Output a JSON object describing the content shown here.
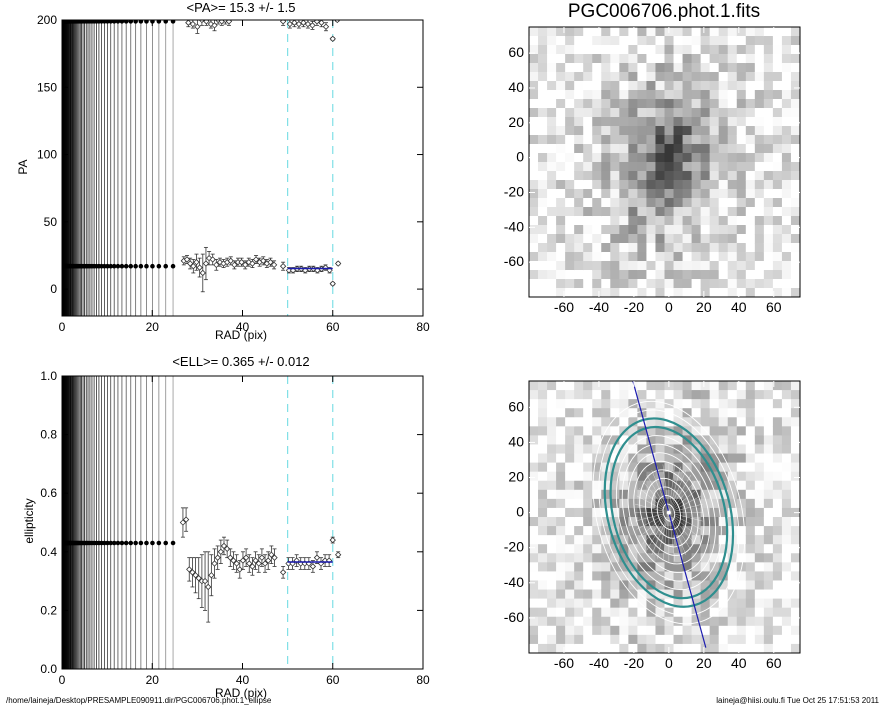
{
  "footer": {
    "path": "/home/laineja/Desktop/PRESAMPLE090911.dir/PGC006706.phot.1_ellipse",
    "user_time": "laineja@hiisi.oulu.fi  Tue Oct 25 17:51:53 2011"
  },
  "colors": {
    "dash_line": "#7fe0e6",
    "fit_line": "#1c1cb0",
    "ellipse_teal": "#2f8f8f",
    "ellipse_white": "#ffffff",
    "axis_line": "#000000"
  },
  "chart_data": [
    {
      "id": "pa",
      "type": "scatter",
      "title": "<PA>=  15.3 +/-   1.5",
      "xlabel": "RAD (pix)",
      "ylabel": "PA",
      "xlim": [
        0,
        80
      ],
      "ylim": [
        -20,
        200
      ],
      "xticks": [
        0,
        20,
        40,
        60,
        80
      ],
      "yticks": [
        0,
        50,
        100,
        150,
        200
      ],
      "dashed_x": [
        50,
        60
      ],
      "fit": {
        "x": [
          50,
          60
        ],
        "y": 15.3
      },
      "dense_region_x": [
        0,
        26
      ],
      "points_low": [
        {
          "x": 27,
          "y": 21,
          "e": 3
        },
        {
          "x": 27.7,
          "y": 22,
          "e": 3
        },
        {
          "x": 28.4,
          "y": 19,
          "e": 4
        },
        {
          "x": 29.1,
          "y": 17,
          "e": 5
        },
        {
          "x": 29.8,
          "y": 20,
          "e": 6
        },
        {
          "x": 30.5,
          "y": 16,
          "e": 7
        },
        {
          "x": 31.2,
          "y": 12,
          "e": 14
        },
        {
          "x": 31.9,
          "y": 19,
          "e": 12
        },
        {
          "x": 32.6,
          "y": 23,
          "e": 5
        },
        {
          "x": 33.4,
          "y": 22,
          "e": 4
        },
        {
          "x": 34.2,
          "y": 18,
          "e": 4
        },
        {
          "x": 35,
          "y": 20,
          "e": 3
        },
        {
          "x": 35.8,
          "y": 19,
          "e": 3
        },
        {
          "x": 36.6,
          "y": 20,
          "e": 3
        },
        {
          "x": 37.4,
          "y": 21,
          "e": 3
        },
        {
          "x": 38.2,
          "y": 18,
          "e": 3
        },
        {
          "x": 39,
          "y": 20,
          "e": 3
        },
        {
          "x": 39.8,
          "y": 20,
          "e": 3
        },
        {
          "x": 40.6,
          "y": 18,
          "e": 3
        },
        {
          "x": 41.4,
          "y": 20,
          "e": 3
        },
        {
          "x": 42.2,
          "y": 19,
          "e": 3
        },
        {
          "x": 43,
          "y": 22,
          "e": 3
        },
        {
          "x": 43.8,
          "y": 20,
          "e": 3
        },
        {
          "x": 44.6,
          "y": 21,
          "e": 3
        },
        {
          "x": 45.4,
          "y": 19,
          "e": 3
        },
        {
          "x": 46.2,
          "y": 20,
          "e": 3
        },
        {
          "x": 47,
          "y": 18,
          "e": 3
        },
        {
          "x": 49,
          "y": 17,
          "e": 3
        },
        {
          "x": 50.3,
          "y": 14,
          "e": 2
        },
        {
          "x": 51.2,
          "y": 14,
          "e": 2
        },
        {
          "x": 52.1,
          "y": 15,
          "e": 2
        },
        {
          "x": 53,
          "y": 15,
          "e": 2
        },
        {
          "x": 53.9,
          "y": 14,
          "e": 2
        },
        {
          "x": 54.8,
          "y": 15,
          "e": 2
        },
        {
          "x": 55.7,
          "y": 15,
          "e": 2
        },
        {
          "x": 56.6,
          "y": 14,
          "e": 2
        },
        {
          "x": 57.5,
          "y": 15,
          "e": 2
        },
        {
          "x": 58.4,
          "y": 16,
          "e": 2
        },
        {
          "x": 59.3,
          "y": 14,
          "e": 2
        },
        {
          "x": 60,
          "y": 4,
          "e": 1
        },
        {
          "x": 61.2,
          "y": 19,
          "e": 1
        }
      ],
      "points_high": [
        {
          "x": 28,
          "y": 198,
          "e": 3
        },
        {
          "x": 29,
          "y": 197,
          "e": 3
        },
        {
          "x": 30,
          "y": 195,
          "e": 5
        },
        {
          "x": 31,
          "y": 200,
          "e": 4
        },
        {
          "x": 32,
          "y": 199,
          "e": 3
        },
        {
          "x": 33,
          "y": 197,
          "e": 3
        },
        {
          "x": 33.8,
          "y": 196,
          "e": 4
        },
        {
          "x": 34.6,
          "y": 200,
          "e": 3
        },
        {
          "x": 35.4,
          "y": 199,
          "e": 3
        },
        {
          "x": 36.2,
          "y": 200,
          "e": 3
        },
        {
          "x": 37,
          "y": 199,
          "e": 3
        },
        {
          "x": 49,
          "y": 199,
          "e": 3
        },
        {
          "x": 50.5,
          "y": 197,
          "e": 3
        },
        {
          "x": 51.5,
          "y": 198,
          "e": 3
        },
        {
          "x": 52.5,
          "y": 197,
          "e": 3
        },
        {
          "x": 53.5,
          "y": 198,
          "e": 3
        },
        {
          "x": 54.5,
          "y": 197,
          "e": 3
        },
        {
          "x": 55.5,
          "y": 196,
          "e": 3
        },
        {
          "x": 56.5,
          "y": 199,
          "e": 3
        },
        {
          "x": 57.5,
          "y": 198,
          "e": 3
        },
        {
          "x": 58.5,
          "y": 195,
          "e": 3
        },
        {
          "x": 60,
          "y": 186,
          "e": 1
        },
        {
          "x": 61,
          "y": 200,
          "e": 1
        }
      ],
      "dense_y_low": 17,
      "dense_y_high": 199
    },
    {
      "id": "ell",
      "type": "scatter",
      "title": "<ELL>= 0.365 +/-  0.012",
      "xlabel": "RAD (pix)",
      "ylabel": "ellipticity",
      "xlim": [
        0,
        80
      ],
      "ylim": [
        0,
        1
      ],
      "xticks": [
        0,
        20,
        40,
        60,
        80
      ],
      "yticks": [
        0.0,
        0.2,
        0.4,
        0.6,
        0.8,
        1.0
      ],
      "dashed_x": [
        50,
        60
      ],
      "fit": {
        "x": [
          50,
          60
        ],
        "y": 0.365
      },
      "dense_region_x": [
        0,
        26
      ],
      "dense_y": 0.43,
      "points": [
        {
          "x": 26.8,
          "y": 0.5,
          "e": 0.05
        },
        {
          "x": 27.5,
          "y": 0.51,
          "e": 0.04
        },
        {
          "x": 28.2,
          "y": 0.34,
          "e": 0.04
        },
        {
          "x": 28.9,
          "y": 0.33,
          "e": 0.05
        },
        {
          "x": 29.6,
          "y": 0.32,
          "e": 0.06
        },
        {
          "x": 30.3,
          "y": 0.31,
          "e": 0.07
        },
        {
          "x": 31,
          "y": 0.3,
          "e": 0.09
        },
        {
          "x": 31.7,
          "y": 0.3,
          "e": 0.1
        },
        {
          "x": 32.4,
          "y": 0.28,
          "e": 0.12
        },
        {
          "x": 33.1,
          "y": 0.32,
          "e": 0.07
        },
        {
          "x": 33.8,
          "y": 0.36,
          "e": 0.05
        },
        {
          "x": 34.5,
          "y": 0.38,
          "e": 0.04
        },
        {
          "x": 35.2,
          "y": 0.4,
          "e": 0.04
        },
        {
          "x": 35.9,
          "y": 0.42,
          "e": 0.03
        },
        {
          "x": 36.6,
          "y": 0.41,
          "e": 0.03
        },
        {
          "x": 37.3,
          "y": 0.38,
          "e": 0.03
        },
        {
          "x": 38,
          "y": 0.37,
          "e": 0.03
        },
        {
          "x": 38.7,
          "y": 0.36,
          "e": 0.03
        },
        {
          "x": 39.4,
          "y": 0.34,
          "e": 0.03
        },
        {
          "x": 40.1,
          "y": 0.37,
          "e": 0.03
        },
        {
          "x": 40.8,
          "y": 0.38,
          "e": 0.03
        },
        {
          "x": 41.5,
          "y": 0.36,
          "e": 0.03
        },
        {
          "x": 42.2,
          "y": 0.35,
          "e": 0.03
        },
        {
          "x": 42.9,
          "y": 0.37,
          "e": 0.03
        },
        {
          "x": 43.6,
          "y": 0.36,
          "e": 0.03
        },
        {
          "x": 44.3,
          "y": 0.38,
          "e": 0.03
        },
        {
          "x": 45,
          "y": 0.36,
          "e": 0.03
        },
        {
          "x": 45.7,
          "y": 0.37,
          "e": 0.03
        },
        {
          "x": 46.4,
          "y": 0.39,
          "e": 0.03
        },
        {
          "x": 47.1,
          "y": 0.38,
          "e": 0.03
        },
        {
          "x": 49,
          "y": 0.33,
          "e": 0.02
        },
        {
          "x": 50.2,
          "y": 0.36,
          "e": 0.02
        },
        {
          "x": 51.1,
          "y": 0.36,
          "e": 0.02
        },
        {
          "x": 52,
          "y": 0.37,
          "e": 0.02
        },
        {
          "x": 52.9,
          "y": 0.36,
          "e": 0.02
        },
        {
          "x": 53.8,
          "y": 0.36,
          "e": 0.02
        },
        {
          "x": 54.7,
          "y": 0.36,
          "e": 0.02
        },
        {
          "x": 55.6,
          "y": 0.35,
          "e": 0.02
        },
        {
          "x": 56.5,
          "y": 0.38,
          "e": 0.02
        },
        {
          "x": 57.4,
          "y": 0.36,
          "e": 0.02
        },
        {
          "x": 58.3,
          "y": 0.37,
          "e": 0.02
        },
        {
          "x": 59.2,
          "y": 0.37,
          "e": 0.02
        },
        {
          "x": 60,
          "y": 0.44,
          "e": 0.01
        },
        {
          "x": 61.2,
          "y": 0.39,
          "e": 0.01
        }
      ]
    },
    {
      "id": "img1",
      "type": "heatmap",
      "title": "PGC006706.phot.1.fits",
      "xlim": [
        -80,
        75
      ],
      "ylim": [
        -80,
        75
      ],
      "xticks": [
        -60,
        -40,
        -20,
        0,
        20,
        40,
        60
      ],
      "yticks": [
        -60,
        -40,
        -20,
        0,
        20,
        40,
        60
      ],
      "colormap": "gray_reversed"
    },
    {
      "id": "img2",
      "type": "heatmap",
      "title": "",
      "xlim": [
        -80,
        75
      ],
      "ylim": [
        -80,
        75
      ],
      "xticks": [
        -60,
        -40,
        -20,
        0,
        20,
        40,
        60
      ],
      "yticks": [
        -60,
        -40,
        -20,
        0,
        20,
        40,
        60
      ],
      "colormap": "gray_reversed",
      "ellipse_pa_deg": 15.3,
      "ellipse_ell": 0.365,
      "ellipse_radii": [
        5,
        10,
        15,
        20,
        25,
        30,
        35,
        40,
        45,
        50,
        55,
        60,
        65
      ],
      "ellipse_fit_radii": [
        50,
        55
      ]
    }
  ]
}
